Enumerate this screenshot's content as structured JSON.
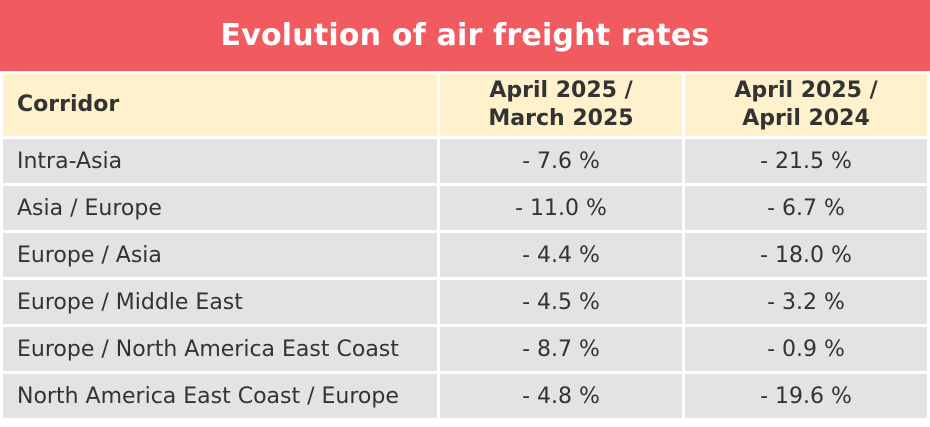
{
  "title": "Evolution of air freight rates",
  "colors": {
    "title_bg": "#f15a5f",
    "header_bg": "#fff1cc",
    "cell_bg": "#e3e3e3",
    "text": "#333333"
  },
  "chart_data": {
    "type": "table",
    "title": "Evolution of air freight rates",
    "columns": [
      "Corridor",
      "April 2025 / March 2025",
      "April 2025 / April 2024"
    ],
    "header": {
      "corridor": "Corridor",
      "col2_line1": "April 2025 /",
      "col2_line2": "March 2025",
      "col3_line1": "April 2025 /",
      "col3_line2": "April 2024"
    },
    "rows": [
      {
        "corridor": "Intra-Asia",
        "mom": "- 7.6 %",
        "yoy": "- 21.5 %"
      },
      {
        "corridor": "Asia / Europe",
        "mom": "- 11.0 %",
        "yoy": "- 6.7 %"
      },
      {
        "corridor": "Europe / Asia",
        "mom": "- 4.4 %",
        "yoy": "- 18.0 %"
      },
      {
        "corridor": "Europe / Middle East",
        "mom": "- 4.5 %",
        "yoy": "- 3.2 %"
      },
      {
        "corridor": "Europe / North America East Coast",
        "mom": "- 8.7 %",
        "yoy": "- 0.9 %"
      },
      {
        "corridor": "North America East Coast / Europe",
        "mom": "- 4.8 %",
        "yoy": "- 19.6 %"
      }
    ],
    "values": {
      "mom": [
        -7.6,
        -11.0,
        -4.4,
        -4.5,
        -8.7,
        -4.8
      ],
      "yoy": [
        -21.5,
        -6.7,
        -18.0,
        -3.2,
        -0.9,
        -19.6
      ]
    }
  }
}
